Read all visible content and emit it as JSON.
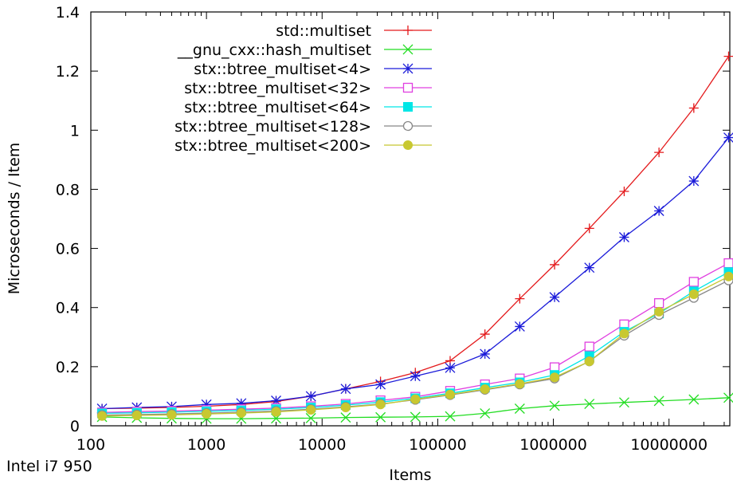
{
  "chart_data": {
    "type": "line",
    "title": "",
    "xlabel": "Items",
    "ylabel": "Microseconds / Item",
    "footnote": "Intel i7 950",
    "x_scale": "log",
    "xlim": [
      100,
      33554432
    ],
    "ylim": [
      0,
      1.4
    ],
    "grid": false,
    "legend_position": "top-left",
    "x_ticks": [
      {
        "value": 100,
        "label": "100"
      },
      {
        "value": 1000,
        "label": "1000"
      },
      {
        "value": 10000,
        "label": "10000"
      },
      {
        "value": 100000,
        "label": "100000"
      },
      {
        "value": 1000000,
        "label": "1000000"
      },
      {
        "value": 10000000,
        "label": "10000000"
      }
    ],
    "y_ticks": [
      {
        "value": 0,
        "label": "0"
      },
      {
        "value": 0.2,
        "label": "0.2"
      },
      {
        "value": 0.4,
        "label": "0.4"
      },
      {
        "value": 0.6,
        "label": "0.6"
      },
      {
        "value": 0.8,
        "label": "0.8"
      },
      {
        "value": 1.0,
        "label": "1"
      },
      {
        "value": 1.2,
        "label": "1.2"
      },
      {
        "value": 1.4,
        "label": "1.4"
      }
    ],
    "x": [
      125,
      250,
      500,
      1000,
      2000,
      4000,
      8000,
      16000,
      32000,
      64000,
      128000,
      256000,
      512000,
      1024000,
      2048000,
      4096000,
      8192000,
      16384000,
      32768000
    ],
    "series": [
      {
        "name": "std::multiset",
        "color": "#e41a1c",
        "marker": "plus",
        "values": [
          0.058,
          0.06,
          0.062,
          0.066,
          0.072,
          0.082,
          0.1,
          0.125,
          0.15,
          0.18,
          0.22,
          0.31,
          0.43,
          0.545,
          0.668,
          0.793,
          0.925,
          1.075,
          1.25
        ]
      },
      {
        "name": "__gnu_cxx::hash_multiset",
        "color": "#22dd22",
        "marker": "cross",
        "values": [
          0.03,
          0.027,
          0.025,
          0.024,
          0.024,
          0.025,
          0.026,
          0.028,
          0.029,
          0.03,
          0.032,
          0.042,
          0.058,
          0.068,
          0.074,
          0.079,
          0.084,
          0.089,
          0.095
        ]
      },
      {
        "name": "stx::btree_multiset<4>",
        "color": "#1b1bd9",
        "marker": "star",
        "values": [
          0.058,
          0.062,
          0.065,
          0.072,
          0.076,
          0.085,
          0.1,
          0.125,
          0.14,
          0.168,
          0.196,
          0.243,
          0.336,
          0.435,
          0.535,
          0.638,
          0.727,
          0.828,
          0.975
        ]
      },
      {
        "name": "stx::btree_multiset<32>",
        "color": "#e040e0",
        "marker": "square-open",
        "values": [
          0.045,
          0.048,
          0.05,
          0.053,
          0.056,
          0.06,
          0.066,
          0.074,
          0.086,
          0.098,
          0.118,
          0.14,
          0.16,
          0.198,
          0.268,
          0.343,
          0.415,
          0.487,
          0.55
        ]
      },
      {
        "name": "stx::btree_multiset<64>",
        "color": "#00e6e6",
        "marker": "square-filled",
        "values": [
          0.042,
          0.044,
          0.046,
          0.049,
          0.052,
          0.056,
          0.062,
          0.07,
          0.08,
          0.093,
          0.11,
          0.129,
          0.147,
          0.172,
          0.236,
          0.318,
          0.38,
          0.455,
          0.52
        ]
      },
      {
        "name": "stx::btree_multiset<128>",
        "color": "#888888",
        "marker": "circle-open",
        "values": [
          0.036,
          0.038,
          0.04,
          0.043,
          0.046,
          0.05,
          0.056,
          0.064,
          0.074,
          0.088,
          0.104,
          0.122,
          0.14,
          0.16,
          0.218,
          0.305,
          0.375,
          0.433,
          0.492
        ]
      },
      {
        "name": "stx::btree_multiset<200>",
        "color": "#c8c830",
        "marker": "circle-filled",
        "values": [
          0.033,
          0.035,
          0.037,
          0.04,
          0.043,
          0.047,
          0.054,
          0.062,
          0.072,
          0.09,
          0.106,
          0.124,
          0.142,
          0.164,
          0.218,
          0.312,
          0.386,
          0.445,
          0.505
        ]
      }
    ]
  }
}
